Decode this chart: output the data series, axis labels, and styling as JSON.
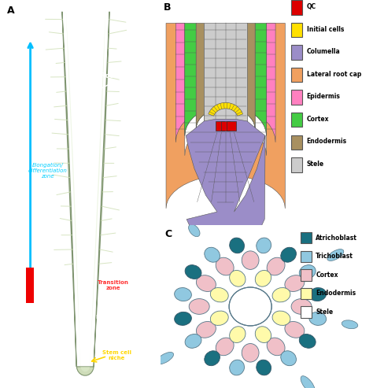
{
  "panel_A_label": "A",
  "panel_B_label": "B",
  "panel_C_label": "C",
  "legend_B": {
    "QC": "#DD0000",
    "Initial cells": "#FFE000",
    "Columella": "#9B8DC8",
    "Lateral root cap": "#F0A060",
    "Epidermis": "#FF80C0",
    "Cortex": "#44CC44",
    "Endodermis": "#A89060",
    "Stele": "#CCCCCC"
  },
  "legend_C": {
    "Atrichoblast": "#1A7080",
    "Trichoblast": "#90C8E0",
    "Cortex": "#F0C0C8",
    "Endodermis": "#FFFAAA",
    "Stele": "#FFFFFF"
  },
  "colors_A": {
    "bg": "#1E3A28",
    "root_body": "#C8D8B0",
    "root_inner": "#E0EED0",
    "root_dark": "#708860",
    "hair_color": "#D0E0B8",
    "elongation_text": "#00CFFF",
    "transition_text": "#FF3333",
    "meristematic_text": "#FFFFFF",
    "stem_cell_text": "#FFD700",
    "blue_arrow": "#00BFFF",
    "red_bar": "#EE0000",
    "white_bar": "#FFFFFF",
    "root_hair_arrow": "#FFFFFF",
    "root_hair_text": "#FFFFFF"
  },
  "fig_bg": "#FFFFFF"
}
